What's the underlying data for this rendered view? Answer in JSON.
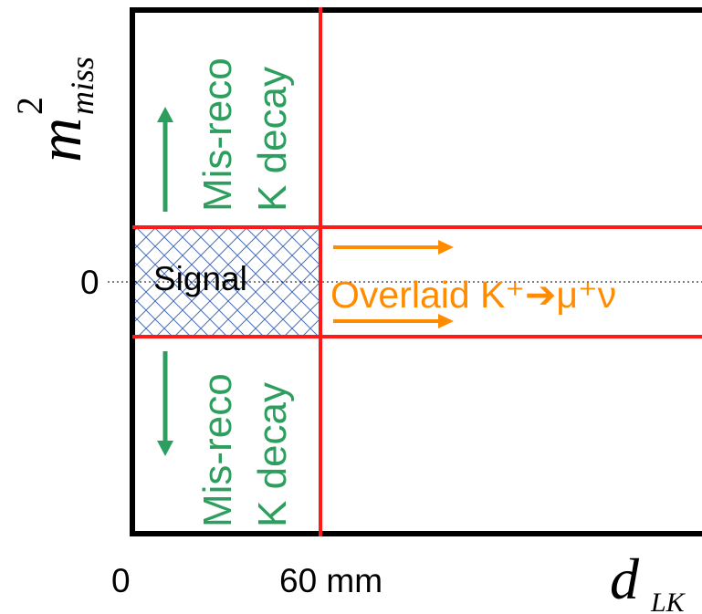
{
  "axes": {
    "y_label_main": "m",
    "y_label_sup": "2",
    "y_label_sub": "miss",
    "y_zero": "0",
    "x_zero": "0",
    "x_cut": "60 mm",
    "x_label_main": "d",
    "x_label_sub": "LK"
  },
  "regions": {
    "signal_label": "Signal",
    "misreco_upper_line1": "Mis-reco",
    "misreco_upper_line2": "K decay",
    "misreco_lower_line1": "Mis-reco",
    "misreco_lower_line2": "K decay",
    "overlaid_label": "Overlaid K⁺➔μ⁺ν"
  },
  "colors": {
    "frame": "#000000",
    "cut_lines": "#ff1a1a",
    "misreco_green": "#2e9e5e",
    "overlaid_orange": "#ff8c00",
    "signal_hatch": "#4a6fb5"
  }
}
